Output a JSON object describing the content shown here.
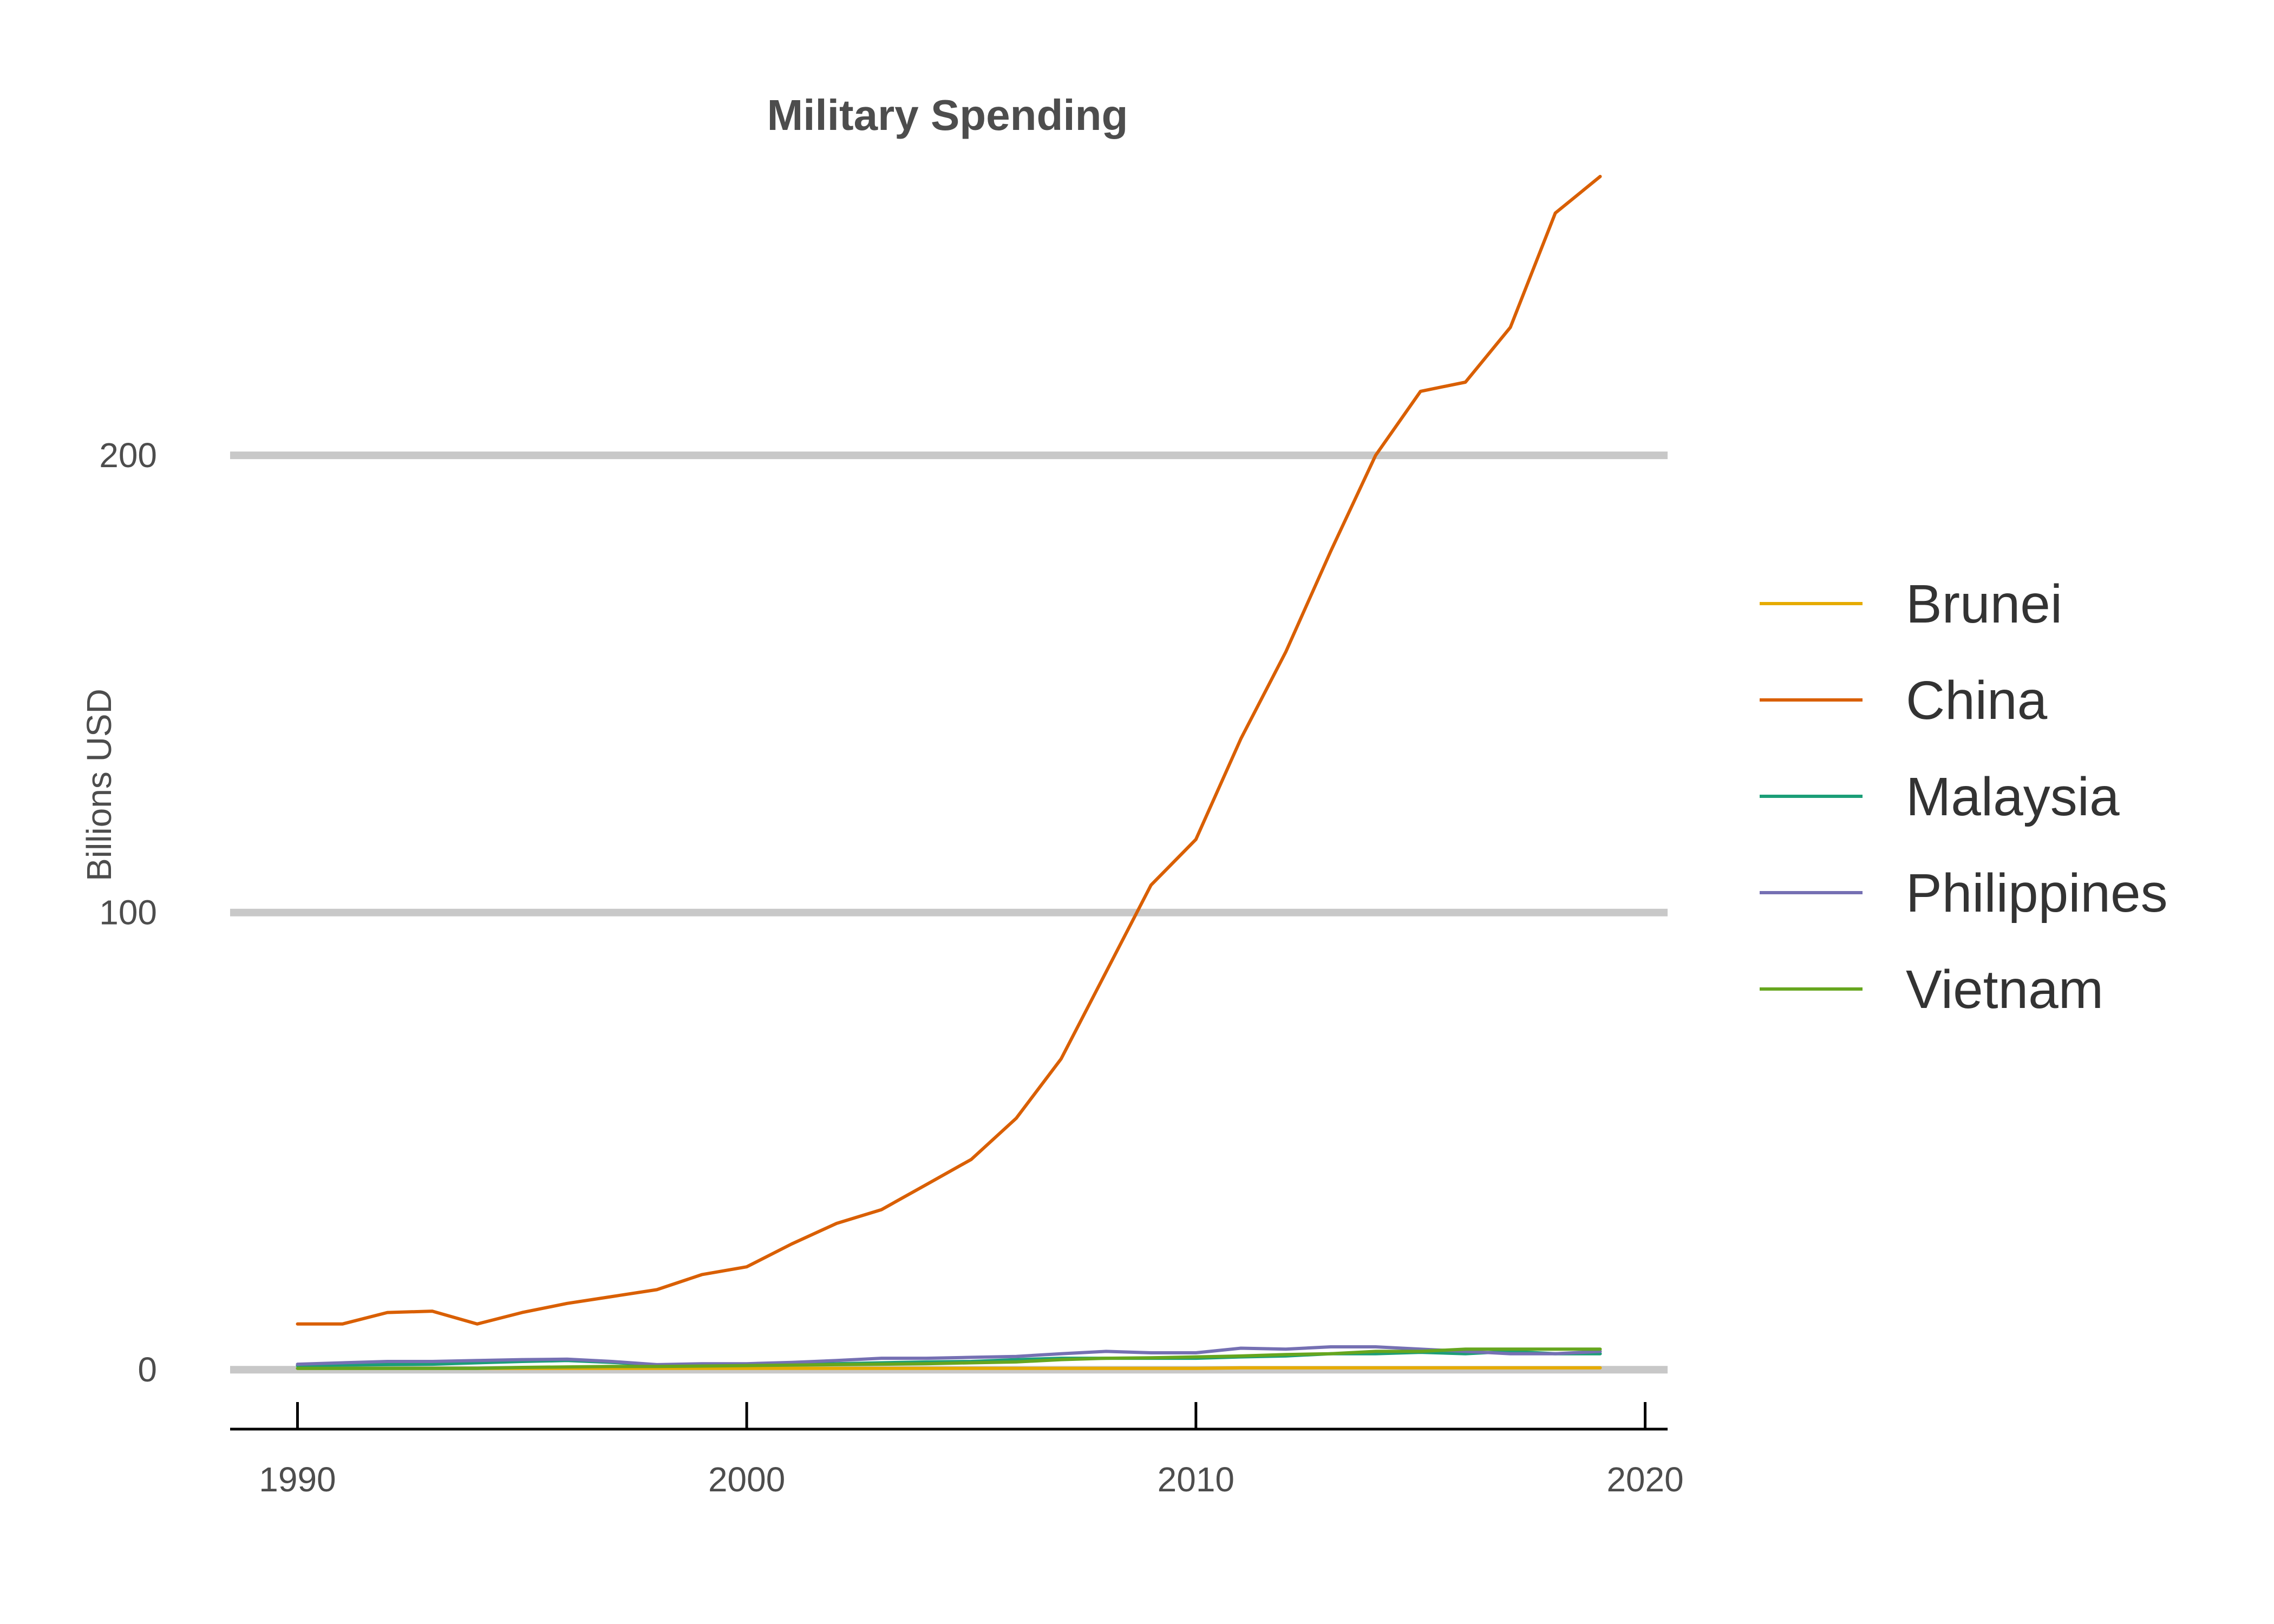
{
  "chart_data": {
    "type": "line",
    "title": "Military Spending",
    "xlabel": "",
    "ylabel": "Billions USD",
    "xlim": [
      1988.5,
      2020.5
    ],
    "ylim": [
      -13,
      270
    ],
    "x_ticks": [
      1990,
      2000,
      2010,
      2020
    ],
    "y_ticks": [
      0,
      100,
      200
    ],
    "x_tick_labels": [
      "1990",
      "2000",
      "2010",
      "2020"
    ],
    "y_tick_labels": [
      "0",
      "100",
      "200"
    ],
    "grid": "horizontal",
    "legend_position": "right",
    "x": [
      1990,
      1991,
      1992,
      1993,
      1994,
      1995,
      1996,
      1997,
      1998,
      1999,
      2000,
      2001,
      2002,
      2003,
      2004,
      2005,
      2006,
      2007,
      2008,
      2009,
      2010,
      2011,
      2012,
      2013,
      2014,
      2015,
      2016,
      2017,
      2018,
      2019
    ],
    "series": [
      {
        "name": "Brunei",
        "color": "#e6ab02",
        "values": [
          0.3,
          0.3,
          0.3,
          0.3,
          0.3,
          0.3,
          0.3,
          0.3,
          0.3,
          0.3,
          0.3,
          0.3,
          0.3,
          0.3,
          0.3,
          0.3,
          0.3,
          0.3,
          0.3,
          0.3,
          0.3,
          0.4,
          0.4,
          0.4,
          0.4,
          0.4,
          0.4,
          0.4,
          0.4,
          0.4
        ]
      },
      {
        "name": "China",
        "color": "#d95f02",
        "values": [
          10,
          10,
          12.5,
          12.8,
          10,
          12.5,
          14.5,
          16,
          17.5,
          20.8,
          22.5,
          27.5,
          32,
          35,
          40.5,
          46,
          55,
          68,
          87,
          106,
          116,
          138,
          157,
          179,
          200,
          214,
          216,
          228,
          253,
          261
        ]
      },
      {
        "name": "Malaysia",
        "color": "#1b9e77",
        "values": [
          0.9,
          1,
          1.1,
          1.2,
          1.5,
          1.8,
          2,
          1.6,
          1,
          1,
          1,
          1.2,
          1.3,
          1.5,
          1.7,
          1.8,
          2.2,
          2.5,
          2.5,
          2.5,
          2.5,
          2.8,
          3,
          3.5,
          3.5,
          3.8,
          3.5,
          4,
          3.5,
          3.5
        ]
      },
      {
        "name": "Philippines",
        "color": "#7570b3",
        "values": [
          1.2,
          1.5,
          1.8,
          1.8,
          2,
          2.2,
          2.3,
          1.8,
          1.1,
          1.3,
          1.3,
          1.6,
          2,
          2.5,
          2.5,
          2.7,
          2.9,
          3.5,
          4,
          3.7,
          3.7,
          4.7,
          4.5,
          5,
          5,
          4.5,
          4,
          3.5,
          3.5,
          4
        ]
      },
      {
        "name": "Vietnam",
        "color": "#66a61e",
        "values": [
          0.3,
          0.3,
          0.3,
          0.3,
          0.3,
          0.5,
          0.6,
          0.7,
          0.7,
          0.8,
          0.9,
          1,
          1.1,
          1.2,
          1.3,
          1.5,
          1.7,
          2.2,
          2.5,
          2.6,
          2.8,
          3,
          3.3,
          3.5,
          4,
          4,
          4.5,
          4.5,
          4.5,
          4.5
        ]
      }
    ]
  }
}
